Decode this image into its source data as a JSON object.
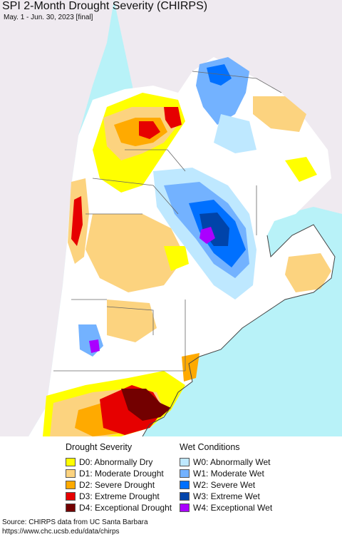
{
  "header": {
    "title": "SPI 2-Month Drought Severity (CHIRPS)",
    "subtitle": "May. 1 - Jun. 30, 2023 [final]"
  },
  "colors": {
    "ocean": "#b8f2f8",
    "outside_land": "#efeaf0",
    "neutral_land": "#ffffff",
    "border": "#666666"
  },
  "legend": {
    "drought": {
      "title": "Drought Severity",
      "items": [
        {
          "label": "D0: Abnormally Dry",
          "color": "#ffff00"
        },
        {
          "label": "D1: Moderate Drought",
          "color": "#fcd37f"
        },
        {
          "label": "D2: Severe Drought",
          "color": "#ffaa00"
        },
        {
          "label": "D3: Extreme Drought",
          "color": "#e60000"
        },
        {
          "label": "D4: Exceptional Drought",
          "color": "#730000"
        }
      ]
    },
    "wet": {
      "title": "Wet Conditions",
      "items": [
        {
          "label": "W0: Abnormally Wet",
          "color": "#bee8ff"
        },
        {
          "label": "W1: Moderate Wet",
          "color": "#73b2ff"
        },
        {
          "label": "W2: Severe Wet",
          "color": "#0070ff"
        },
        {
          "label": "W3: Extreme Wet",
          "color": "#0044aa"
        },
        {
          "label": "W4: Exceptional Wet",
          "color": "#aa00ff"
        }
      ]
    }
  },
  "footer": {
    "source_line": "Source: CHIRPS data from UC Santa Barbara",
    "url_line": "https://www.chc.ucsb.edu/data/chirps"
  }
}
